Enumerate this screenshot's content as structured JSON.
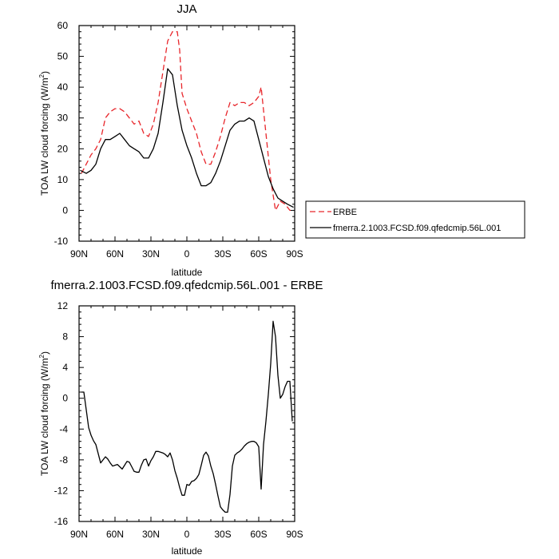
{
  "colors": {
    "erbe": "#e8262b",
    "model": "#000000"
  },
  "chart_data": [
    {
      "type": "line",
      "title": "JJA",
      "xlabel": "latitude",
      "ylabel": "TOA LW cloud forcing (W/m",
      "ylabel_sup": "2",
      "ylabel_close": ")",
      "xlim": [
        90,
        -90
      ],
      "ylim": [
        -10,
        60
      ],
      "xtick_values": [
        90,
        60,
        30,
        0,
        -30,
        -60,
        -90
      ],
      "xtick_labels": [
        "90N",
        "60N",
        "30N",
        "0",
        "30S",
        "60S",
        "90S"
      ],
      "ytick_values": [
        -10,
        0,
        10,
        20,
        30,
        40,
        50,
        60
      ],
      "ytick_labels": [
        "-10",
        "0",
        "10",
        "20",
        "30",
        "40",
        "50",
        "60"
      ],
      "legend_position": "outside-right",
      "series": [
        {
          "name": "ERBE",
          "style": "dashed",
          "color": "#e8262b",
          "x": [
            88,
            84,
            80,
            76,
            72,
            68,
            64,
            60,
            56,
            52,
            48,
            44,
            40,
            36,
            32,
            28,
            24,
            20,
            16,
            12,
            8,
            6,
            4,
            0,
            -4,
            -8,
            -12,
            -16,
            -20,
            -24,
            -28,
            -32,
            -36,
            -40,
            -44,
            -48,
            -52,
            -56,
            -60,
            -62,
            -66,
            -70,
            -74,
            -78,
            -82,
            -86,
            -89
          ],
          "y": [
            12,
            15,
            18,
            20,
            23,
            30,
            32,
            33,
            33,
            32,
            30,
            28,
            29,
            25,
            24,
            28,
            35,
            45,
            55,
            58,
            58,
            52,
            38,
            33,
            29,
            25,
            19,
            15,
            15,
            19,
            24,
            30,
            35,
            34,
            35,
            35,
            34,
            35,
            37,
            40,
            25,
            10,
            0,
            3,
            2,
            0,
            0
          ]
        },
        {
          "name": "fmerra.2.1003.FCSD.f09.qfedcmip.56L.001",
          "style": "solid",
          "color": "#000000",
          "x": [
            89,
            84,
            80,
            76,
            72,
            68,
            64,
            60,
            56,
            52,
            48,
            44,
            40,
            36,
            32,
            28,
            24,
            20,
            16,
            12,
            8,
            4,
            0,
            -4,
            -8,
            -12,
            -16,
            -20,
            -24,
            -28,
            -32,
            -36,
            -40,
            -44,
            -48,
            -52,
            -56,
            -60,
            -64,
            -68,
            -72,
            -76,
            -80,
            -84,
            -89
          ],
          "y": [
            13,
            12,
            13,
            15,
            20,
            23,
            23,
            24,
            25,
            23,
            21,
            20,
            19,
            17,
            17,
            20,
            25,
            35,
            46,
            44,
            34,
            26,
            21,
            17,
            12,
            8,
            8,
            9,
            12,
            16,
            21,
            26,
            28,
            29,
            29,
            30,
            29,
            23,
            17,
            11,
            7,
            4,
            3,
            2,
            1
          ]
        }
      ]
    },
    {
      "type": "line",
      "title": "fmerra.2.1003.FCSD.f09.qfedcmip.56L.001 - ERBE",
      "xlabel": "latitude",
      "ylabel": "TOA LW cloud forcing (W/m",
      "ylabel_sup": "2",
      "ylabel_close": ")",
      "xlim": [
        90,
        -90
      ],
      "ylim": [
        -16,
        12
      ],
      "xtick_values": [
        90,
        60,
        30,
        0,
        -30,
        -60,
        -90
      ],
      "xtick_labels": [
        "90N",
        "60N",
        "30N",
        "0",
        "30S",
        "60S",
        "90S"
      ],
      "ytick_values": [
        -16,
        -12,
        -8,
        -4,
        0,
        4,
        8,
        12
      ],
      "ytick_labels": [
        "-16",
        "-12",
        "-8",
        "-4",
        "0",
        "4",
        "8",
        "12"
      ],
      "series": [
        {
          "style": "solid",
          "color": "#000000",
          "x": [
            88,
            86,
            84,
            82,
            80,
            78,
            76,
            74,
            72,
            70,
            68,
            66,
            64,
            62,
            60,
            58,
            56,
            54,
            52,
            50,
            48,
            46,
            44,
            42,
            40,
            38,
            36,
            34,
            32,
            30,
            28,
            26,
            24,
            22,
            20,
            18,
            16,
            14,
            12,
            10,
            8,
            6,
            4,
            2,
            0,
            -2,
            -4,
            -6,
            -8,
            -10,
            -12,
            -14,
            -16,
            -18,
            -20,
            -22,
            -24,
            -26,
            -28,
            -30,
            -32,
            -34,
            -36,
            -38,
            -40,
            -42,
            -44,
            -46,
            -48,
            -50,
            -52,
            -54,
            -56,
            -58,
            -60,
            -62,
            -64,
            -66,
            -68,
            -70,
            -72,
            -74,
            -76,
            -78,
            -80,
            -82,
            -84,
            -86,
            -88
          ],
          "y": [
            0.8,
            0.8,
            -1.5,
            -3.8,
            -4.8,
            -5.5,
            -6,
            -7.2,
            -8.4,
            -8,
            -7.6,
            -7.9,
            -8.4,
            -8.8,
            -8.7,
            -8.6,
            -8.9,
            -9.2,
            -8.7,
            -8.2,
            -8.3,
            -8.9,
            -9.5,
            -9.6,
            -9.6,
            -8.7,
            -8,
            -7.9,
            -8.8,
            -8.1,
            -7.6,
            -6.9,
            -6.9,
            -7,
            -7.1,
            -7.3,
            -7.6,
            -7.1,
            -8,
            -9.4,
            -10.4,
            -11.6,
            -12.6,
            -12.6,
            -11.2,
            -11.3,
            -10.8,
            -10.7,
            -10.4,
            -9.9,
            -8.7,
            -7.4,
            -7,
            -7.5,
            -8.8,
            -9.8,
            -11.2,
            -12.7,
            -14.1,
            -14.5,
            -14.8,
            -14.8,
            -12.5,
            -8.8,
            -7.4,
            -7.1,
            -6.9,
            -6.6,
            -6.2,
            -5.9,
            -5.7,
            -5.6,
            -5.6,
            -5.8,
            -6.3,
            -11.8,
            -6,
            -3,
            0.5,
            4.5,
            10,
            8,
            3,
            0,
            0.5,
            1.5,
            2.2,
            2.2,
            -3
          ]
        }
      ]
    }
  ]
}
